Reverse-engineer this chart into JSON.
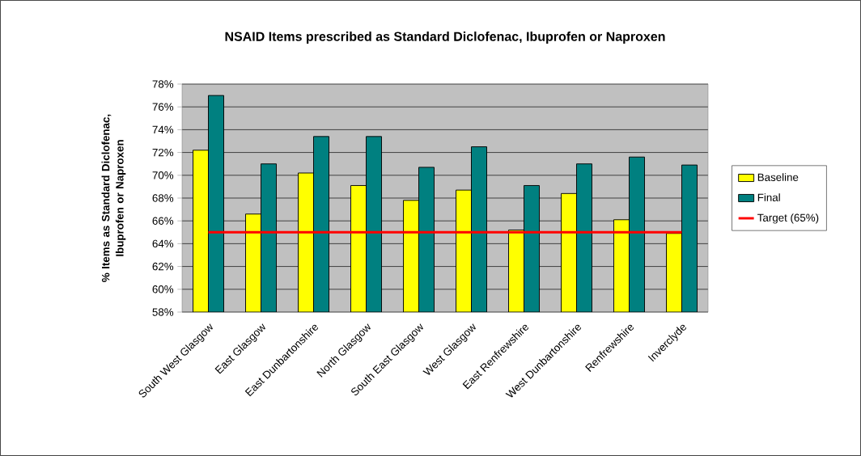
{
  "chart_data": {
    "type": "bar",
    "title": "NSAID Items prescribed as Standard Diclofenac, Ibuprofen or Naproxen",
    "ylabel": "% Items as Standard Diclofenac, Ibuprofen or Naproxen",
    "categories": [
      "South West Glasgow",
      "East Glasgow",
      "East Dunbartonshire",
      "North Glasgow",
      "South East Glasgow",
      "West Glasgow",
      "East Renfrewshire",
      "West Dunbartonshire",
      "Renfrewshire",
      "Inverclyde"
    ],
    "series": [
      {
        "name": "Baseline",
        "color": "#ffff00",
        "values": [
          72.2,
          66.6,
          70.2,
          69.1,
          67.8,
          68.7,
          65.2,
          68.4,
          66.1,
          64.9
        ]
      },
      {
        "name": "Final",
        "color": "#008080",
        "values": [
          77.0,
          71.0,
          73.4,
          73.4,
          70.7,
          72.5,
          69.1,
          71.0,
          71.6,
          70.9
        ]
      },
      {
        "name": "Target (65%)",
        "type": "line",
        "color": "#ff0000",
        "values": [
          65,
          65,
          65,
          65,
          65,
          65,
          65,
          65,
          65,
          65
        ]
      }
    ],
    "ylim": [
      58,
      78
    ],
    "yticks": [
      {
        "value": 58,
        "label": "58%"
      },
      {
        "value": 60,
        "label": "60%"
      },
      {
        "value": 62,
        "label": "62%"
      },
      {
        "value": 64,
        "label": "64%"
      },
      {
        "value": 66,
        "label": "66%"
      },
      {
        "value": 68,
        "label": "68%"
      },
      {
        "value": 70,
        "label": "70%"
      },
      {
        "value": 72,
        "label": "72%"
      },
      {
        "value": 74,
        "label": "74%"
      },
      {
        "value": 76,
        "label": "76%"
      },
      {
        "value": 78,
        "label": "78%"
      }
    ],
    "grid": "y",
    "legend": "right",
    "marker": "none"
  }
}
